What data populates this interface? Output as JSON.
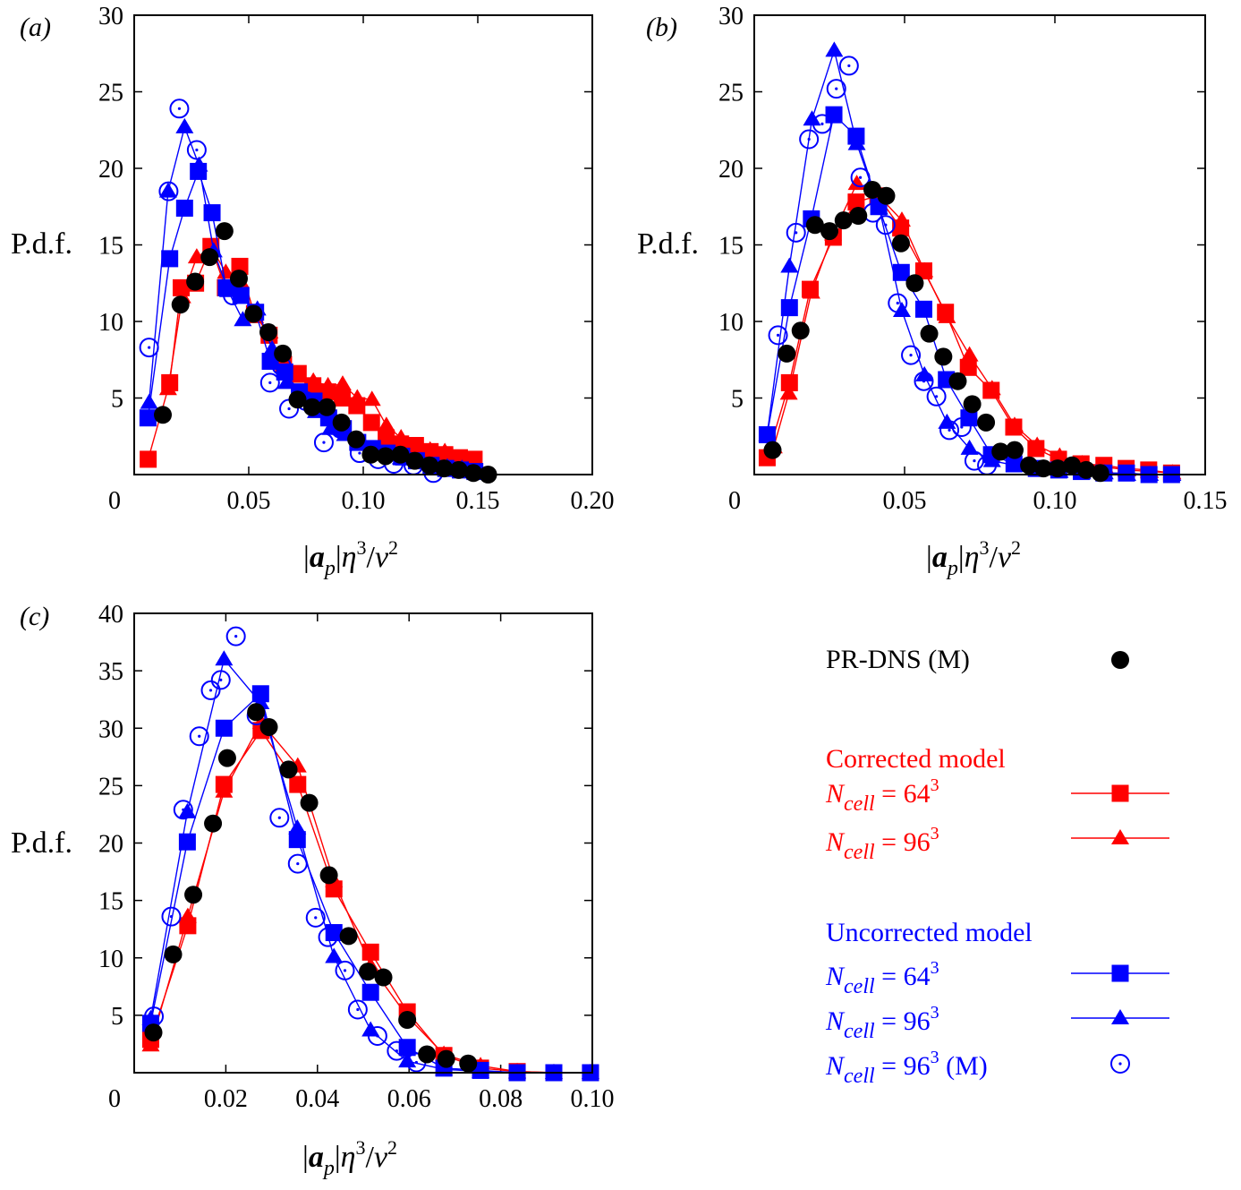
{
  "colors": {
    "black": "#000000",
    "red": "#ff0000",
    "blue": "#0000ff"
  },
  "axis_labels": {
    "ylabel": "P.d.f.",
    "xlabel": "|a_p|η³/ν²",
    "xlabel_parts": {
      "bar_open": "|",
      "a": "a",
      "p": "p",
      "bar_close": "|",
      "eta": "η",
      "exp3": "3",
      "slash": "/",
      "nu": "ν",
      "exp2": "2"
    }
  },
  "legend": {
    "dns": "PR-DNS (M)",
    "corrected_title": "Corrected model",
    "uncorrected_title": "Uncorrected model",
    "n_symbol": "N",
    "n_subscript": "cell",
    "eq": " = ",
    "cube": "3",
    "size_64": "64",
    "size_96": "96",
    "m_suffix": " (M)"
  },
  "chart_data": [
    {
      "panel": "(a)",
      "type": "scatter",
      "xlim": [
        0,
        0.2
      ],
      "ylim": [
        0,
        30
      ],
      "xticks": [
        0,
        0.05,
        0.1,
        0.15,
        0.2
      ],
      "xticklabels": [
        "0",
        "0.05",
        "0.10",
        "0.15",
        "0.20"
      ],
      "yticks": [
        5,
        10,
        15,
        20,
        25,
        30
      ],
      "yticklabels": [
        "5",
        "10",
        "15",
        "20",
        "25",
        "30"
      ],
      "series": [
        {
          "name": "PR-DNS (M)",
          "color": "black",
          "marker": "circle",
          "line": false,
          "x": [
            0.0125,
            0.0202,
            0.0266,
            0.0329,
            0.0394,
            0.0457,
            0.0521,
            0.0586,
            0.0649,
            0.0713,
            0.0777,
            0.0841,
            0.0905,
            0.0969,
            0.1033,
            0.1097,
            0.1162,
            0.1225,
            0.1289,
            0.1353,
            0.1417,
            0.1481,
            0.1545
          ],
          "y": [
            3.9,
            11.1,
            12.6,
            14.2,
            15.9,
            12.8,
            10.5,
            9.3,
            7.9,
            4.9,
            4.4,
            4.4,
            3.4,
            2.3,
            1.3,
            1.2,
            1.3,
            0.9,
            0.6,
            0.4,
            0.3,
            0.1,
            0.0
          ]
        },
        {
          "name": "Corrected N=64³",
          "color": "red",
          "marker": "square",
          "line": true,
          "x": [
            0.0061,
            0.0155,
            0.0205,
            0.0268,
            0.0335,
            0.0398,
            0.0461,
            0.0525,
            0.0589,
            0.0652,
            0.0716,
            0.078,
            0.0845,
            0.0908,
            0.0972,
            0.1036,
            0.11,
            0.1163,
            0.1228,
            0.1292,
            0.1356,
            0.142,
            0.1484
          ],
          "y": [
            1.0,
            6.0,
            12.2,
            12.5,
            14.9,
            12.2,
            13.6,
            10.5,
            9.1,
            7.2,
            6.6,
            5.8,
            5.4,
            5.0,
            4.5,
            3.4,
            2.4,
            2.0,
            1.9,
            1.5,
            1.3,
            1.1,
            1.0
          ]
        },
        {
          "name": "Corrected N=96³",
          "color": "red",
          "marker": "triangle",
          "line": true,
          "x": [
            0.0148,
            0.021,
            0.0273,
            0.0337,
            0.04,
            0.0464,
            0.0528,
            0.0591,
            0.0655,
            0.0719,
            0.0782,
            0.0846,
            0.091,
            0.0974,
            0.1038,
            0.1101,
            0.1165,
            0.1229,
            0.1292,
            0.1356,
            0.142,
            0.1484
          ],
          "y": [
            5.6,
            11.6,
            14.2,
            14.8,
            13.2,
            12.6,
            10.3,
            9.3,
            6.8,
            6.4,
            6.1,
            5.8,
            5.9,
            5.0,
            4.9,
            3.2,
            2.4,
            1.8,
            1.6,
            1.5,
            1.0,
            0.8
          ]
        },
        {
          "name": "Uncorrected N=64³",
          "color": "blue",
          "marker": "square",
          "line": true,
          "x": [
            0.006,
            0.0155,
            0.022,
            0.028,
            0.034,
            0.0402,
            0.0466,
            0.053,
            0.0594,
            0.0657,
            0.0721,
            0.0785,
            0.0849,
            0.0913,
            0.0976,
            0.104,
            0.1104,
            0.1168,
            0.1232,
            0.1296,
            0.136,
            0.1424,
            0.1487
          ],
          "y": [
            3.7,
            14.1,
            17.4,
            19.8,
            17.1,
            12.2,
            11.7,
            10.6,
            7.4,
            6.7,
            5.4,
            4.8,
            3.7,
            3.0,
            2.1,
            1.7,
            1.4,
            1.2,
            0.9,
            0.6,
            0.4,
            0.3,
            0.2
          ]
        },
        {
          "name": "Uncorrected N=96³",
          "color": "blue",
          "marker": "triangle",
          "line": true,
          "x": [
            0.0065,
            0.0148,
            0.022,
            0.0283,
            0.0347,
            0.041,
            0.0474,
            0.0538,
            0.0602,
            0.0665,
            0.0729,
            0.0793,
            0.0857,
            0.092,
            0.0984,
            0.1048,
            0.1112,
            0.1176,
            0.1239,
            0.1303,
            0.1367,
            0.1431
          ],
          "y": [
            4.7,
            18.5,
            22.7,
            20.2,
            14.6,
            12.0,
            10.1,
            10.8,
            8.2,
            6.0,
            5.0,
            4.1,
            3.0,
            2.6,
            2.2,
            1.6,
            1.3,
            1.0,
            0.8,
            0.6,
            0.5,
            0.4
          ]
        },
        {
          "name": "Uncorrected N=96³ (M)",
          "color": "blue",
          "marker": "circle-dot",
          "line": false,
          "x": [
            0.0065,
            0.015,
            0.0197,
            0.0273,
            0.043,
            0.0593,
            0.0643,
            0.0676,
            0.075,
            0.0828,
            0.09,
            0.0984,
            0.1065,
            0.1133,
            0.1219,
            0.1306
          ],
          "y": [
            8.3,
            18.5,
            23.9,
            21.2,
            11.7,
            6.0,
            7.1,
            4.3,
            4.8,
            2.1,
            3.0,
            1.4,
            1.0,
            0.7,
            0.6,
            0.1
          ]
        }
      ]
    },
    {
      "panel": "(b)",
      "type": "scatter",
      "xlim": [
        0,
        0.15
      ],
      "ylim": [
        0,
        30
      ],
      "xticks": [
        0,
        0.05,
        0.1,
        0.15
      ],
      "xticklabels": [
        "0",
        "0.05",
        "0.10",
        "0.15"
      ],
      "yticks": [
        5,
        10,
        15,
        20,
        25,
        30
      ],
      "yticklabels": [
        "5",
        "10",
        "15",
        "20",
        "25",
        "30"
      ],
      "series": [
        {
          "name": "PR-DNS (M)",
          "color": "black",
          "marker": "circle",
          "line": false,
          "x": [
            0.0061,
            0.0108,
            0.0154,
            0.0202,
            0.025,
            0.0297,
            0.0346,
            0.0393,
            0.0439,
            0.0488,
            0.0534,
            0.0582,
            0.0629,
            0.0677,
            0.0725,
            0.0771,
            0.0819,
            0.0866,
            0.0914,
            0.0962,
            0.1009,
            0.1057,
            0.1104,
            0.1151
          ],
          "y": [
            1.6,
            7.9,
            9.4,
            16.3,
            15.9,
            16.6,
            16.9,
            18.6,
            18.2,
            15.1,
            12.5,
            9.2,
            7.7,
            6.1,
            4.6,
            3.4,
            1.5,
            1.6,
            0.6,
            0.4,
            0.4,
            0.6,
            0.3,
            0.1
          ]
        },
        {
          "name": "Corrected N=64³",
          "color": "red",
          "marker": "square",
          "line": true,
          "x": [
            0.0043,
            0.0117,
            0.0186,
            0.0263,
            0.0339,
            0.0411,
            0.0487,
            0.0564,
            0.0636,
            0.0712,
            0.0788,
            0.0863,
            0.0937,
            0.1012,
            0.1087,
            0.1163,
            0.1237,
            0.1312,
            0.1388
          ],
          "y": [
            1.1,
            6.0,
            12.1,
            15.5,
            17.8,
            18.2,
            16.1,
            13.3,
            10.6,
            7.0,
            5.5,
            3.1,
            1.7,
            1.0,
            0.7,
            0.6,
            0.4,
            0.3,
            0.1
          ]
        },
        {
          "name": "Corrected N=96³",
          "color": "red",
          "marker": "triangle",
          "line": true,
          "x": [
            0.0065,
            0.0115,
            0.019,
            0.0262,
            0.0341,
            0.0414,
            0.0491,
            0.0566,
            0.0641,
            0.0716,
            0.0791,
            0.0866,
            0.0941,
            0.1016,
            0.1091,
            0.1166,
            0.1241,
            0.1316,
            0.1391
          ],
          "y": [
            1.8,
            5.3,
            11.9,
            15.7,
            19.0,
            18.2,
            16.6,
            13.3,
            10.3,
            7.8,
            5.6,
            3.2,
            1.9,
            1.2,
            0.7,
            0.5,
            0.3,
            0.2,
            0.1
          ]
        },
        {
          "name": "Uncorrected N=64³",
          "color": "blue",
          "marker": "square",
          "line": true,
          "x": [
            0.0043,
            0.0117,
            0.019,
            0.0265,
            0.0339,
            0.0414,
            0.0489,
            0.0564,
            0.0639,
            0.0714,
            0.0789,
            0.0864,
            0.0938,
            0.1013,
            0.1088,
            0.1163,
            0.1238,
            0.1313,
            0.1388
          ],
          "y": [
            2.6,
            10.9,
            16.7,
            23.5,
            22.1,
            17.5,
            13.2,
            10.8,
            6.2,
            3.7,
            1.3,
            0.7,
            0.4,
            0.3,
            0.2,
            0.1,
            0.1,
            0.0,
            0.0
          ]
        },
        {
          "name": "Uncorrected N=96³",
          "color": "blue",
          "marker": "triangle",
          "line": true,
          "x": [
            0.0043,
            0.0117,
            0.0192,
            0.0266,
            0.0341,
            0.0416,
            0.0491,
            0.0566,
            0.0641,
            0.0716,
            0.0791,
            0.0866,
            0.0941,
            0.1016,
            0.1091,
            0.1166,
            0.1241,
            0.1316,
            0.1391
          ],
          "y": [
            2.6,
            13.6,
            23.2,
            27.7,
            21.6,
            17.4,
            10.7,
            6.5,
            3.4,
            1.7,
            0.9,
            0.6,
            0.3,
            0.2,
            0.1,
            0.1,
            0.0,
            0.0,
            0.0
          ]
        },
        {
          "name": "Uncorrected N=96³ (M)",
          "color": "blue",
          "marker": "circle-dot",
          "line": false,
          "x": [
            0.0079,
            0.0139,
            0.0182,
            0.0226,
            0.0273,
            0.0315,
            0.0353,
            0.0395,
            0.0437,
            0.0477,
            0.0521,
            0.0564,
            0.0606,
            0.0649,
            0.069,
            0.0732,
            0.0774
          ],
          "y": [
            9.1,
            15.8,
            21.9,
            22.9,
            25.2,
            26.7,
            19.4,
            17.1,
            16.3,
            11.2,
            7.8,
            6.1,
            5.1,
            2.9,
            3.1,
            0.9,
            0.6
          ]
        }
      ]
    },
    {
      "panel": "(c)",
      "type": "scatter",
      "xlim": [
        0,
        0.1
      ],
      "ylim": [
        0,
        40
      ],
      "xticks": [
        0,
        0.02,
        0.04,
        0.06,
        0.08,
        0.1
      ],
      "xticklabels": [
        "0",
        "0.02",
        "0.04",
        "0.06",
        "0.08",
        "0.10"
      ],
      "yticks": [
        5,
        10,
        15,
        20,
        25,
        30,
        35,
        40
      ],
      "yticklabels": [
        "5",
        "10",
        "15",
        "20",
        "25",
        "30",
        "35",
        "40"
      ],
      "series": [
        {
          "name": "PR-DNS (M)",
          "color": "black",
          "marker": "circle",
          "line": false,
          "x": [
            0.0042,
            0.0085,
            0.0129,
            0.0172,
            0.0203,
            0.0266,
            0.0294,
            0.0337,
            0.0382,
            0.0425,
            0.0468,
            0.051,
            0.0544,
            0.0596,
            0.0639,
            0.0681,
            0.0729
          ],
          "y": [
            3.5,
            10.3,
            15.5,
            21.7,
            27.4,
            31.4,
            30.1,
            26.4,
            23.5,
            17.2,
            11.9,
            8.8,
            8.3,
            4.6,
            1.6,
            1.2,
            0.8
          ]
        },
        {
          "name": "Corrected N=64³",
          "color": "red",
          "marker": "square",
          "line": true,
          "x": [
            0.0036,
            0.0117,
            0.0196,
            0.0277,
            0.0357,
            0.0436,
            0.0516,
            0.0596,
            0.0676,
            0.0756,
            0.0836,
            0.0916,
            0.0996
          ],
          "y": [
            2.9,
            12.8,
            25.1,
            29.8,
            25.1,
            16.0,
            10.5,
            5.3,
            1.5,
            0.4,
            0.1,
            0.0,
            0.0
          ]
        },
        {
          "name": "Corrected N=96³",
          "color": "red",
          "marker": "triangle",
          "line": true,
          "x": [
            0.0036,
            0.0117,
            0.0196,
            0.0277,
            0.0357,
            0.0436,
            0.0516,
            0.0596,
            0.0676,
            0.0756,
            0.0836,
            0.0916,
            0.0996
          ],
          "y": [
            2.4,
            13.6,
            24.5,
            30.5,
            26.7,
            16.7,
            9.3,
            4.9,
            1.6,
            0.6,
            0.1,
            0.0,
            0.0
          ]
        },
        {
          "name": "Uncorrected N=64³",
          "color": "blue",
          "marker": "square",
          "line": true,
          "x": [
            0.0036,
            0.0116,
            0.0196,
            0.0276,
            0.0356,
            0.0436,
            0.0516,
            0.0596,
            0.0676,
            0.0756,
            0.0836,
            0.0916,
            0.0996
          ],
          "y": [
            4.3,
            20.1,
            30.0,
            33.0,
            20.3,
            12.2,
            7.0,
            2.2,
            0.4,
            0.2,
            0.0,
            0.0,
            0.0
          ]
        },
        {
          "name": "Uncorrected N=96³",
          "color": "blue",
          "marker": "triangle",
          "line": true,
          "x": [
            0.0036,
            0.0116,
            0.0196,
            0.0276,
            0.0356,
            0.0436,
            0.0516,
            0.0596,
            0.0676,
            0.0756,
            0.0836,
            0.0916,
            0.0996
          ],
          "y": [
            4.7,
            22.7,
            36.0,
            32.2,
            21.3,
            10.1,
            3.7,
            1.0,
            0.3,
            0.1,
            0.0,
            0.0,
            0.0
          ]
        },
        {
          "name": "Uncorrected N=96³ (M)",
          "color": "blue",
          "marker": "circle-dot",
          "line": false,
          "x": [
            0.0043,
            0.0081,
            0.0107,
            0.0142,
            0.0167,
            0.0189,
            0.0222,
            0.0267,
            0.0317,
            0.0357,
            0.0396,
            0.0423,
            0.046,
            0.0488,
            0.0531,
            0.0573,
            0.0616
          ],
          "y": [
            4.9,
            13.6,
            22.9,
            29.3,
            33.3,
            34.2,
            38.0,
            31.1,
            22.2,
            18.2,
            13.5,
            11.8,
            8.9,
            5.5,
            3.2,
            1.9,
            0.9
          ]
        }
      ]
    }
  ]
}
